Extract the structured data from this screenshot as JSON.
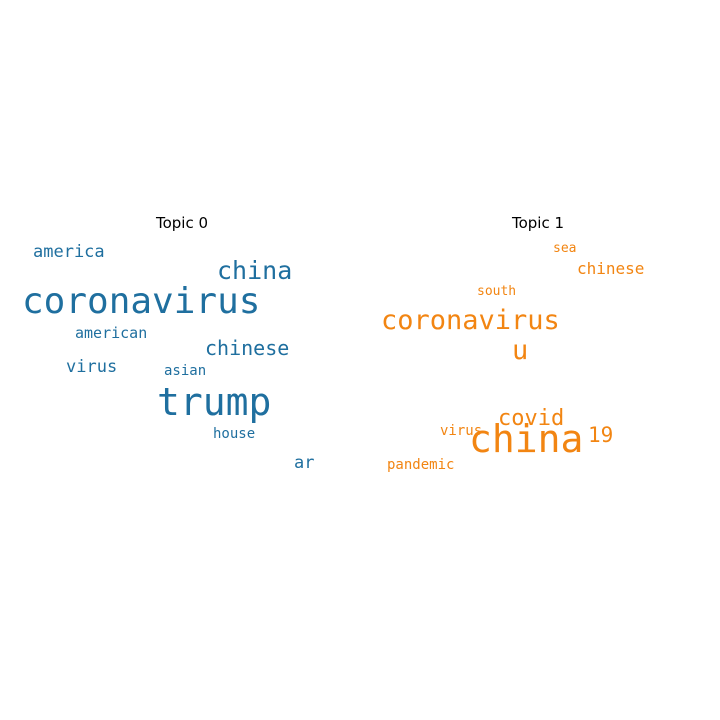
{
  "chart_data": {
    "type": "wordcloud",
    "panels": [
      {
        "title": "Topic 0",
        "color": "#1f6f9f",
        "words": [
          {
            "text": "coronavirus",
            "weight": 1.0
          },
          {
            "text": "trump",
            "weight": 0.9
          },
          {
            "text": "china",
            "weight": 0.7
          },
          {
            "text": "chinese",
            "weight": 0.55
          },
          {
            "text": "america",
            "weight": 0.48
          },
          {
            "text": "virus",
            "weight": 0.48
          },
          {
            "text": "ar",
            "weight": 0.48
          },
          {
            "text": "american",
            "weight": 0.42
          },
          {
            "text": "house",
            "weight": 0.4
          },
          {
            "text": "asian",
            "weight": 0.38
          }
        ]
      },
      {
        "title": "Topic 1",
        "color": "#f28512",
        "words": [
          {
            "text": "china",
            "weight": 1.0
          },
          {
            "text": "coronavirus",
            "weight": 0.75
          },
          {
            "text": "u",
            "weight": 0.75
          },
          {
            "text": "covid",
            "weight": 0.62
          },
          {
            "text": "19",
            "weight": 0.58
          },
          {
            "text": "chinese",
            "weight": 0.45
          },
          {
            "text": "pandemic",
            "weight": 0.4
          },
          {
            "text": "virus",
            "weight": 0.38
          },
          {
            "text": "south",
            "weight": 0.37
          },
          {
            "text": "sea",
            "weight": 0.35
          }
        ]
      }
    ]
  }
}
